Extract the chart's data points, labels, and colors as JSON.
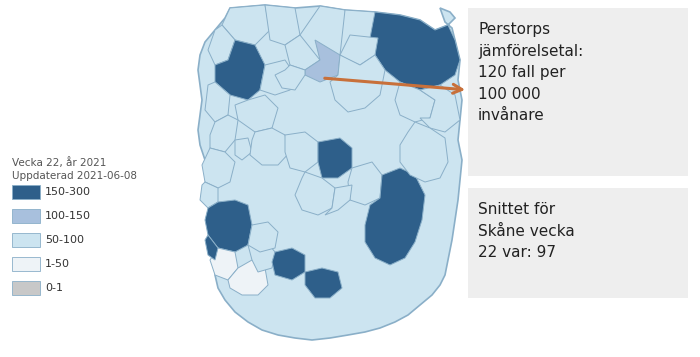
{
  "week_label": "Vecka 22, år 2021",
  "updated_label": "Uppdaterad 2021-06-08",
  "annotation_text": "Perstorps\njämförelsetal:\n120 fall per\n100 000\ninvånare",
  "snitt_text": "Snittet för\nSkåne vecka\n22 var: 97",
  "legend_items": [
    {
      "label": "150-300",
      "color": "#2e5f8a"
    },
    {
      "label": "100-150",
      "color": "#a8c0dd"
    },
    {
      "label": "50-100",
      "color": "#cce4f0"
    },
    {
      "label": "1-50",
      "color": "#eef3f7"
    },
    {
      "label": "0-1",
      "color": "#c8c8c8"
    }
  ],
  "background_color": "#ffffff",
  "arrow_color": "#c8703a",
  "info_box_bg": "#eeeeee",
  "map_edge_color": "#8aafc8",
  "map_bg_color": "#cce4f0",
  "figsize": [
    7.0,
    3.57
  ],
  "dpi": 100
}
